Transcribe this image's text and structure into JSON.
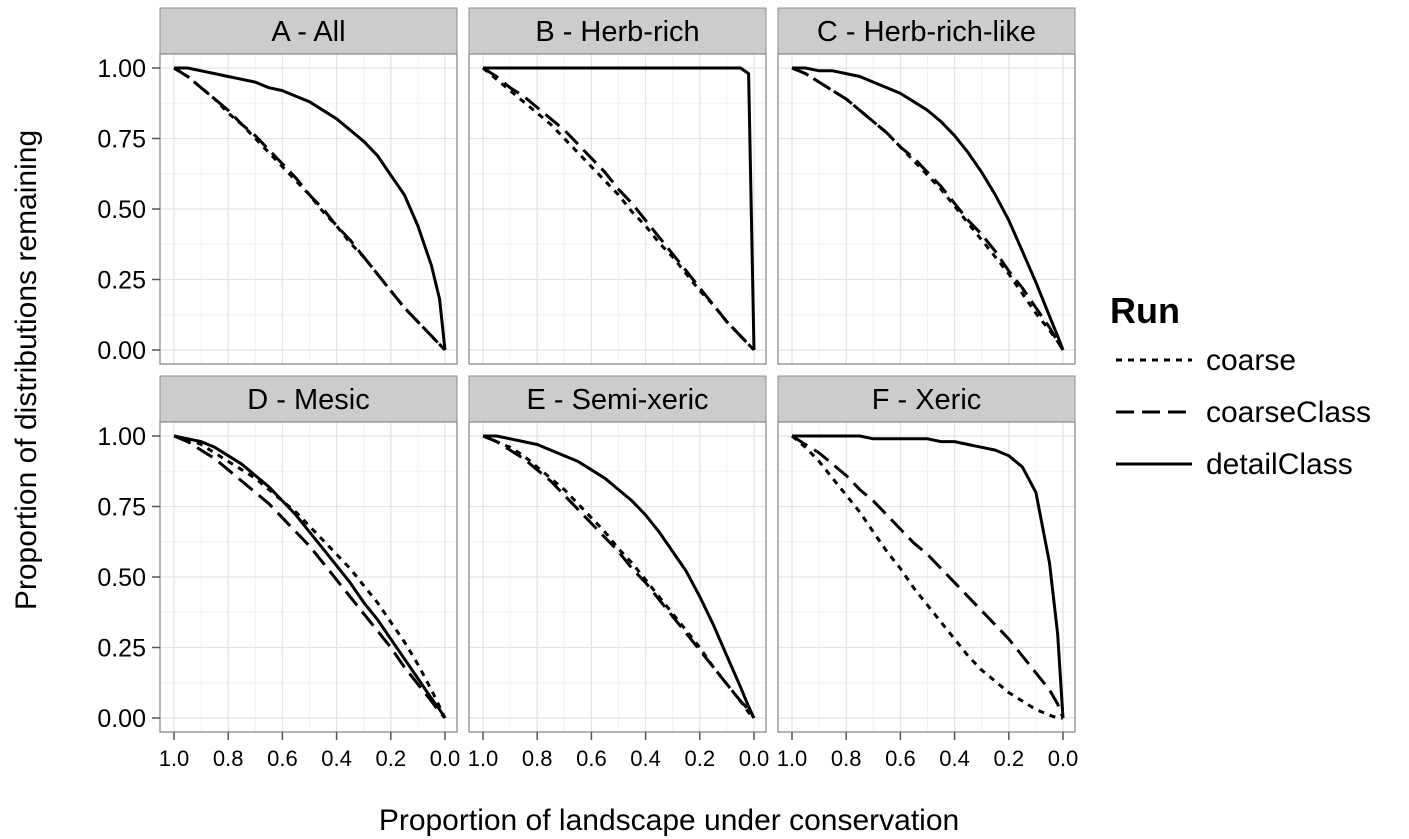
{
  "chart_data": {
    "type": "line",
    "xlabel": "Proportion of landscape under conservation",
    "ylabel": "Proportion of distributions remaining",
    "xlim": [
      1.0,
      0.0
    ],
    "ylim": [
      0.0,
      1.0
    ],
    "x_reversed": true,
    "xticks": [
      "1.0",
      "0.8",
      "0.6",
      "0.4",
      "0.2",
      "0.0"
    ],
    "yticks": [
      "0.00",
      "0.25",
      "0.50",
      "0.75",
      "1.00"
    ],
    "grid": true,
    "legend": {
      "title": "Run",
      "position": "right",
      "entries": [
        {
          "name": "coarse",
          "linestyle": "dotted"
        },
        {
          "name": "coarseClass",
          "linestyle": "dashed"
        },
        {
          "name": "detailClass",
          "linestyle": "solid"
        }
      ]
    },
    "x": [
      1.0,
      0.95,
      0.9,
      0.85,
      0.8,
      0.75,
      0.7,
      0.65,
      0.6,
      0.55,
      0.5,
      0.45,
      0.4,
      0.35,
      0.3,
      0.25,
      0.2,
      0.15,
      0.1,
      0.05,
      0.02,
      0.0
    ],
    "panels": [
      {
        "title": "A - All",
        "series": [
          {
            "name": "coarse",
            "values": [
              1.0,
              0.97,
              0.93,
              0.89,
              0.84,
              0.8,
              0.75,
              0.7,
              0.65,
              0.6,
              0.55,
              0.49,
              0.44,
              0.38,
              0.33,
              0.27,
              0.21,
              0.15,
              0.1,
              0.05,
              0.02,
              0.0
            ]
          },
          {
            "name": "coarseClass",
            "values": [
              1.0,
              0.97,
              0.93,
              0.89,
              0.85,
              0.8,
              0.76,
              0.71,
              0.66,
              0.61,
              0.55,
              0.5,
              0.44,
              0.39,
              0.33,
              0.27,
              0.21,
              0.15,
              0.1,
              0.05,
              0.02,
              0.0
            ]
          },
          {
            "name": "detailClass",
            "values": [
              1.0,
              1.0,
              0.99,
              0.98,
              0.97,
              0.96,
              0.95,
              0.93,
              0.92,
              0.9,
              0.88,
              0.85,
              0.82,
              0.78,
              0.74,
              0.69,
              0.62,
              0.55,
              0.44,
              0.3,
              0.18,
              0.0
            ]
          }
        ]
      },
      {
        "title": "B - Herb-rich",
        "series": [
          {
            "name": "coarse",
            "values": [
              1.0,
              0.96,
              0.92,
              0.88,
              0.84,
              0.8,
              0.75,
              0.7,
              0.65,
              0.6,
              0.55,
              0.49,
              0.44,
              0.38,
              0.33,
              0.27,
              0.21,
              0.16,
              0.1,
              0.05,
              0.02,
              0.0
            ]
          },
          {
            "name": "coarseClass",
            "values": [
              1.0,
              0.97,
              0.93,
              0.9,
              0.86,
              0.82,
              0.78,
              0.73,
              0.68,
              0.63,
              0.57,
              0.52,
              0.46,
              0.4,
              0.34,
              0.28,
              0.22,
              0.16,
              0.1,
              0.05,
              0.02,
              0.0
            ]
          },
          {
            "name": "detailClass",
            "values": [
              1.0,
              1.0,
              1.0,
              1.0,
              1.0,
              1.0,
              1.0,
              1.0,
              1.0,
              1.0,
              1.0,
              1.0,
              1.0,
              1.0,
              1.0,
              1.0,
              1.0,
              1.0,
              1.0,
              1.0,
              0.98,
              0.0
            ]
          }
        ]
      },
      {
        "title": "C - Herb-rich-like",
        "series": [
          {
            "name": "coarse",
            "values": [
              1.0,
              0.98,
              0.95,
              0.92,
              0.89,
              0.85,
              0.81,
              0.77,
              0.72,
              0.67,
              0.62,
              0.57,
              0.51,
              0.45,
              0.39,
              0.33,
              0.27,
              0.2,
              0.13,
              0.07,
              0.03,
              0.0
            ]
          },
          {
            "name": "coarseClass",
            "values": [
              1.0,
              0.98,
              0.95,
              0.92,
              0.89,
              0.85,
              0.81,
              0.77,
              0.72,
              0.68,
              0.63,
              0.58,
              0.52,
              0.46,
              0.41,
              0.35,
              0.28,
              0.22,
              0.15,
              0.08,
              0.03,
              0.0
            ]
          },
          {
            "name": "detailClass",
            "values": [
              1.0,
              1.0,
              0.99,
              0.99,
              0.98,
              0.97,
              0.95,
              0.93,
              0.91,
              0.88,
              0.85,
              0.81,
              0.76,
              0.7,
              0.63,
              0.55,
              0.46,
              0.35,
              0.24,
              0.12,
              0.05,
              0.0
            ]
          }
        ]
      },
      {
        "title": "D - Mesic",
        "series": [
          {
            "name": "coarse",
            "values": [
              1.0,
              0.99,
              0.97,
              0.94,
              0.91,
              0.88,
              0.85,
              0.81,
              0.77,
              0.73,
              0.68,
              0.63,
              0.58,
              0.53,
              0.47,
              0.41,
              0.34,
              0.27,
              0.19,
              0.1,
              0.04,
              0.0
            ]
          },
          {
            "name": "coarseClass",
            "values": [
              1.0,
              0.98,
              0.95,
              0.92,
              0.88,
              0.84,
              0.8,
              0.76,
              0.71,
              0.66,
              0.61,
              0.55,
              0.49,
              0.43,
              0.37,
              0.31,
              0.25,
              0.18,
              0.12,
              0.06,
              0.02,
              0.0
            ]
          },
          {
            "name": "detailClass",
            "values": [
              1.0,
              0.99,
              0.98,
              0.96,
              0.93,
              0.9,
              0.86,
              0.82,
              0.77,
              0.72,
              0.66,
              0.6,
              0.54,
              0.48,
              0.41,
              0.35,
              0.28,
              0.21,
              0.14,
              0.07,
              0.03,
              0.0
            ]
          }
        ]
      },
      {
        "title": "E - Semi-xeric",
        "series": [
          {
            "name": "coarse",
            "values": [
              1.0,
              0.98,
              0.96,
              0.93,
              0.89,
              0.85,
              0.81,
              0.76,
              0.71,
              0.66,
              0.6,
              0.55,
              0.49,
              0.43,
              0.37,
              0.31,
              0.25,
              0.18,
              0.12,
              0.06,
              0.02,
              0.0
            ]
          },
          {
            "name": "coarseClass",
            "values": [
              1.0,
              0.98,
              0.95,
              0.92,
              0.88,
              0.84,
              0.79,
              0.74,
              0.69,
              0.64,
              0.59,
              0.53,
              0.48,
              0.42,
              0.36,
              0.3,
              0.24,
              0.18,
              0.12,
              0.06,
              0.03,
              0.0
            ]
          },
          {
            "name": "detailClass",
            "values": [
              1.0,
              1.0,
              0.99,
              0.98,
              0.97,
              0.95,
              0.93,
              0.91,
              0.88,
              0.85,
              0.81,
              0.77,
              0.72,
              0.66,
              0.59,
              0.52,
              0.43,
              0.33,
              0.22,
              0.11,
              0.04,
              0.0
            ]
          }
        ]
      },
      {
        "title": "F - Xeric",
        "series": [
          {
            "name": "coarse",
            "values": [
              1.0,
              0.96,
              0.91,
              0.85,
              0.79,
              0.73,
              0.66,
              0.59,
              0.53,
              0.46,
              0.4,
              0.34,
              0.28,
              0.22,
              0.17,
              0.13,
              0.09,
              0.06,
              0.03,
              0.01,
              0.0,
              0.0
            ]
          },
          {
            "name": "coarseClass",
            "values": [
              1.0,
              0.97,
              0.94,
              0.9,
              0.86,
              0.81,
              0.77,
              0.72,
              0.67,
              0.62,
              0.58,
              0.53,
              0.48,
              0.43,
              0.38,
              0.33,
              0.28,
              0.22,
              0.16,
              0.1,
              0.05,
              0.0
            ]
          },
          {
            "name": "detailClass",
            "values": [
              1.0,
              1.0,
              1.0,
              1.0,
              1.0,
              1.0,
              0.99,
              0.99,
              0.99,
              0.99,
              0.99,
              0.98,
              0.98,
              0.97,
              0.96,
              0.95,
              0.93,
              0.89,
              0.8,
              0.55,
              0.3,
              0.0
            ]
          }
        ]
      }
    ]
  }
}
